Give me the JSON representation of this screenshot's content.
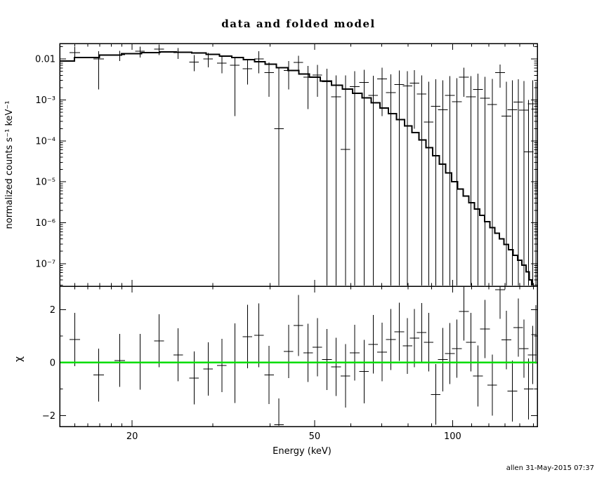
{
  "signature": "allen 31-May-2015 07:37",
  "colors": {
    "foreground": "#000000",
    "background": "#ffffff",
    "zero_line": "#00dd00"
  },
  "chart_data": {
    "type": "line",
    "title": "data and folded model",
    "xlabel": "Energy (keV)",
    "x_ticks": {
      "major_values": [
        20,
        50,
        100
      ],
      "major_labels": [
        "20",
        "50",
        "100"
      ],
      "minor_values": [
        15,
        16,
        17,
        18,
        19,
        30,
        40,
        60,
        70,
        80,
        90,
        110,
        120,
        130,
        140,
        150
      ]
    },
    "panels": [
      {
        "name": "spectrum",
        "ylabel": "normalized counts s⁻¹ keV⁻¹",
        "xscale": "log",
        "yscale": "log",
        "xlim": [
          13.9,
          153
        ],
        "ylim": [
          2.8e-08,
          0.024
        ],
        "y_tick_values": [
          0.01,
          0.001,
          0.0001,
          1e-05,
          1e-06,
          1e-07
        ],
        "y_tick_labels": [
          "0.01",
          "10⁻³",
          "10⁻⁴",
          "10⁻⁵",
          "10⁻⁶",
          "10⁻⁷"
        ]
      },
      {
        "name": "residuals",
        "ylabel": "χ",
        "xscale": "log",
        "yscale": "linear",
        "xlim": [
          13.9,
          153
        ],
        "ylim": [
          -2.41,
          2.88
        ],
        "y_tick_values": [
          2,
          0,
          -2
        ],
        "y_tick_labels": [
          "2",
          "0",
          "−2"
        ],
        "y_minor_tick_values": [
          1,
          -1
        ],
        "zero_line_y": 0
      }
    ],
    "model_step": [
      [
        14,
        0.009
      ],
      [
        16,
        0.0108
      ],
      [
        18,
        0.0124
      ],
      [
        20,
        0.0136
      ],
      [
        22,
        0.0145
      ],
      [
        24,
        0.015
      ],
      [
        26,
        0.0147
      ],
      [
        28,
        0.014
      ],
      [
        30,
        0.013
      ],
      [
        32,
        0.0119
      ],
      [
        34,
        0.0108
      ],
      [
        36,
        0.0097
      ],
      [
        38,
        0.0086
      ],
      [
        40,
        0.0075
      ],
      [
        42.5,
        0.0062
      ],
      [
        45,
        0.0052
      ],
      [
        47.5,
        0.0043
      ],
      [
        50,
        0.0036
      ],
      [
        53,
        0.0029
      ],
      [
        56,
        0.0023
      ],
      [
        59,
        0.00185
      ],
      [
        62,
        0.00145
      ],
      [
        65,
        0.00112
      ],
      [
        68,
        0.00085
      ],
      [
        71,
        0.00063
      ],
      [
        74,
        0.00046
      ],
      [
        77,
        0.00033
      ],
      [
        80,
        0.00023
      ],
      [
        83,
        0.000158
      ],
      [
        86,
        0.000105
      ],
      [
        89,
        6.8e-05
      ],
      [
        92,
        4.3e-05
      ],
      [
        95,
        2.7e-05
      ],
      [
        98,
        1.65e-05
      ],
      [
        101,
        1e-05
      ],
      [
        104,
        6.7e-06
      ],
      [
        107,
        4.5e-06
      ],
      [
        110,
        3.1e-06
      ],
      [
        113,
        2.15e-06
      ],
      [
        116,
        1.5e-06
      ],
      [
        119,
        1.06e-06
      ],
      [
        122,
        7.6e-07
      ],
      [
        125,
        5.5e-07
      ],
      [
        128,
        4e-07
      ],
      [
        131,
        2.95e-07
      ],
      [
        134,
        2.2e-07
      ],
      [
        137,
        1.6e-07
      ],
      [
        140,
        1.2e-07
      ],
      [
        143,
        9.2e-08
      ],
      [
        146,
        6.3e-08
      ],
      [
        148,
        4e-08
      ],
      [
        149.5,
        2.6e-08
      ],
      [
        151,
        1.4e-08
      ],
      [
        153,
        6e-09
      ]
    ],
    "bins_columns": [
      "energy_keV",
      "half_width_keV",
      "rate",
      "rate_err_lo",
      "rate_err_hi",
      "chi",
      "chi_err"
    ],
    "bins": [
      [
        15.0,
        0.4,
        0.0143,
        0.0104,
        0.0196,
        0.87,
        1.0
      ],
      [
        16.9,
        0.45,
        0.01,
        0.0018,
        0.0154,
        -0.47,
        1.0
      ],
      [
        18.8,
        0.5,
        0.0127,
        0.009,
        0.016,
        0.08,
        1.0
      ],
      [
        20.8,
        0.5,
        0.0155,
        0.011,
        0.02,
        0.03,
        1.05
      ],
      [
        22.9,
        0.55,
        0.0174,
        0.0125,
        0.0225,
        0.82,
        1.0
      ],
      [
        25.2,
        0.6,
        0.0143,
        0.01,
        0.0185,
        0.29,
        1.0
      ],
      [
        27.3,
        0.65,
        0.0085,
        0.005,
        0.0125,
        -0.58,
        1.0
      ],
      [
        29.3,
        0.7,
        0.01,
        0.0063,
        0.014,
        -0.24,
        1.0
      ],
      [
        31.4,
        0.75,
        0.0079,
        0.0045,
        0.0115,
        -0.11,
        1.0
      ],
      [
        33.5,
        0.8,
        0.007,
        0.0004,
        0.0105,
        -0.02,
        1.5
      ],
      [
        35.7,
        0.85,
        0.0058,
        0.0024,
        0.0095,
        0.98,
        1.2
      ],
      [
        37.8,
        0.9,
        0.01,
        0.0045,
        0.0155,
        1.03,
        1.2
      ],
      [
        39.8,
        0.95,
        0.0047,
        0.0012,
        0.0082,
        -0.47,
        1.1
      ],
      [
        41.8,
        1.0,
        0.0002,
        0,
        0.006,
        -2.35,
        1.0
      ],
      [
        43.9,
        1.05,
        0.0053,
        0.0018,
        0.009,
        0.42,
        1.0
      ],
      [
        46.1,
        1.1,
        0.0082,
        0.0045,
        0.012,
        1.4,
        1.15
      ],
      [
        48.4,
        1.15,
        0.0036,
        0.0006,
        0.0068,
        0.37,
        1.1
      ],
      [
        50.7,
        1.2,
        0.0041,
        0.0012,
        0.0072,
        0.58,
        1.1
      ],
      [
        53.2,
        1.3,
        0.0028,
        0,
        0.0058,
        0.11,
        1.15
      ],
      [
        55.7,
        1.35,
        0.0012,
        0,
        0.004,
        -0.16,
        1.1
      ],
      [
        58.4,
        1.4,
        6.2e-05,
        0,
        0.004,
        -0.5,
        1.2
      ],
      [
        61.2,
        1.5,
        0.0021,
        0,
        0.005,
        0.37,
        1.05
      ],
      [
        64.1,
        1.55,
        0.0027,
        0,
        0.0055,
        -0.34,
        1.2
      ],
      [
        67.1,
        1.6,
        0.0013,
        0,
        0.0039,
        0.69,
        1.1
      ],
      [
        70.2,
        1.7,
        0.0033,
        0.0004,
        0.0062,
        0.4,
        1.1
      ],
      [
        73.3,
        1.8,
        0.0015,
        0,
        0.0042,
        0.87,
        1.15
      ],
      [
        76.5,
        1.85,
        0.0024,
        0,
        0.0052,
        1.16,
        1.1
      ],
      [
        79.7,
        1.9,
        0.0022,
        0,
        0.005,
        0.63,
        1.05
      ],
      [
        82.6,
        2.0,
        0.0026,
        0.0002,
        0.0054,
        0.92,
        1.1
      ],
      [
        85.6,
        2.1,
        0.0014,
        0,
        0.004,
        1.14,
        1.1
      ],
      [
        88.7,
        2.15,
        0.00029,
        0,
        0.0028,
        0.77,
        1.1
      ],
      [
        91.9,
        2.2,
        0.0007,
        0,
        0.0032,
        -1.2,
        1.15
      ],
      [
        95.2,
        2.3,
        0.00058,
        0,
        0.003,
        0.11,
        1.2
      ],
      [
        98.6,
        2.4,
        0.0013,
        0,
        0.0038,
        0.34,
        1.15
      ],
      [
        102.2,
        2.5,
        0.0009,
        0,
        0.0034,
        0.53,
        1.1
      ],
      [
        105.9,
        2.6,
        0.0036,
        0.0012,
        0.0062,
        1.93,
        1.1
      ],
      [
        109.7,
        2.7,
        0.0012,
        0,
        0.0038,
        0.77,
        1.1
      ],
      [
        113.6,
        2.8,
        0.0018,
        0,
        0.0044,
        -0.5,
        1.15
      ],
      [
        117.7,
        2.9,
        0.0011,
        0,
        0.0037,
        1.27,
        1.1
      ],
      [
        122.0,
        3.0,
        0.00077,
        0,
        0.0033,
        -0.85,
        1.15
      ],
      [
        126.9,
        3.1,
        0.0047,
        0.002,
        0.0074,
        2.75,
        1.1
      ],
      [
        131.0,
        3.2,
        0.0004,
        0,
        0.0028,
        0.85,
        1.1
      ],
      [
        135.0,
        3.3,
        0.00058,
        0,
        0.003,
        -1.08,
        1.15
      ],
      [
        139.0,
        3.4,
        0.00088,
        0,
        0.0032,
        1.32,
        1.1
      ],
      [
        143.0,
        3.5,
        0.00056,
        0,
        0.0029,
        0.53,
        1.1
      ],
      [
        146.5,
        3.5,
        5.4e-05,
        0,
        0.001,
        -1.0,
        1.15
      ],
      [
        149.5,
        3.5,
        0.0008,
        0,
        0.003,
        0.29,
        1.1
      ],
      [
        152.0,
        3.5,
        0.0006,
        0,
        0.0028,
        1.06,
        1.1
      ]
    ]
  }
}
